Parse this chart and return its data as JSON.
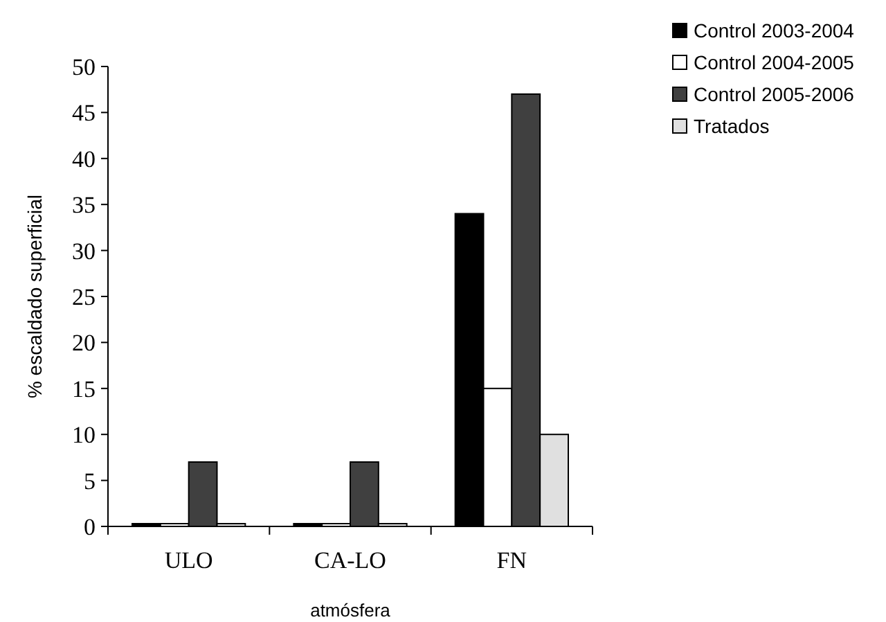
{
  "chart_data": {
    "type": "bar",
    "xlabel": "atmósfera",
    "ylabel": "% escaldado superficial",
    "categories": [
      "ULO",
      "CA-LO",
      "FN"
    ],
    "series": [
      {
        "name": "Control 2003-2004",
        "color": "#000000",
        "values": [
          0.3,
          0.3,
          34
        ]
      },
      {
        "name": "Control 2004-2005",
        "color": "#ffffff",
        "values": [
          0.3,
          0.3,
          15
        ]
      },
      {
        "name": "Control 2005-2006",
        "color": "#404040",
        "values": [
          7,
          7,
          47
        ]
      },
      {
        "name": "Tratados",
        "color": "#e0e0e0",
        "values": [
          0.3,
          0.3,
          10
        ]
      }
    ],
    "ylim": [
      0,
      50
    ],
    "yticks": [
      0,
      5,
      10,
      15,
      20,
      25,
      30,
      35,
      40,
      45,
      50
    ],
    "grid": false,
    "legend": "top right"
  }
}
